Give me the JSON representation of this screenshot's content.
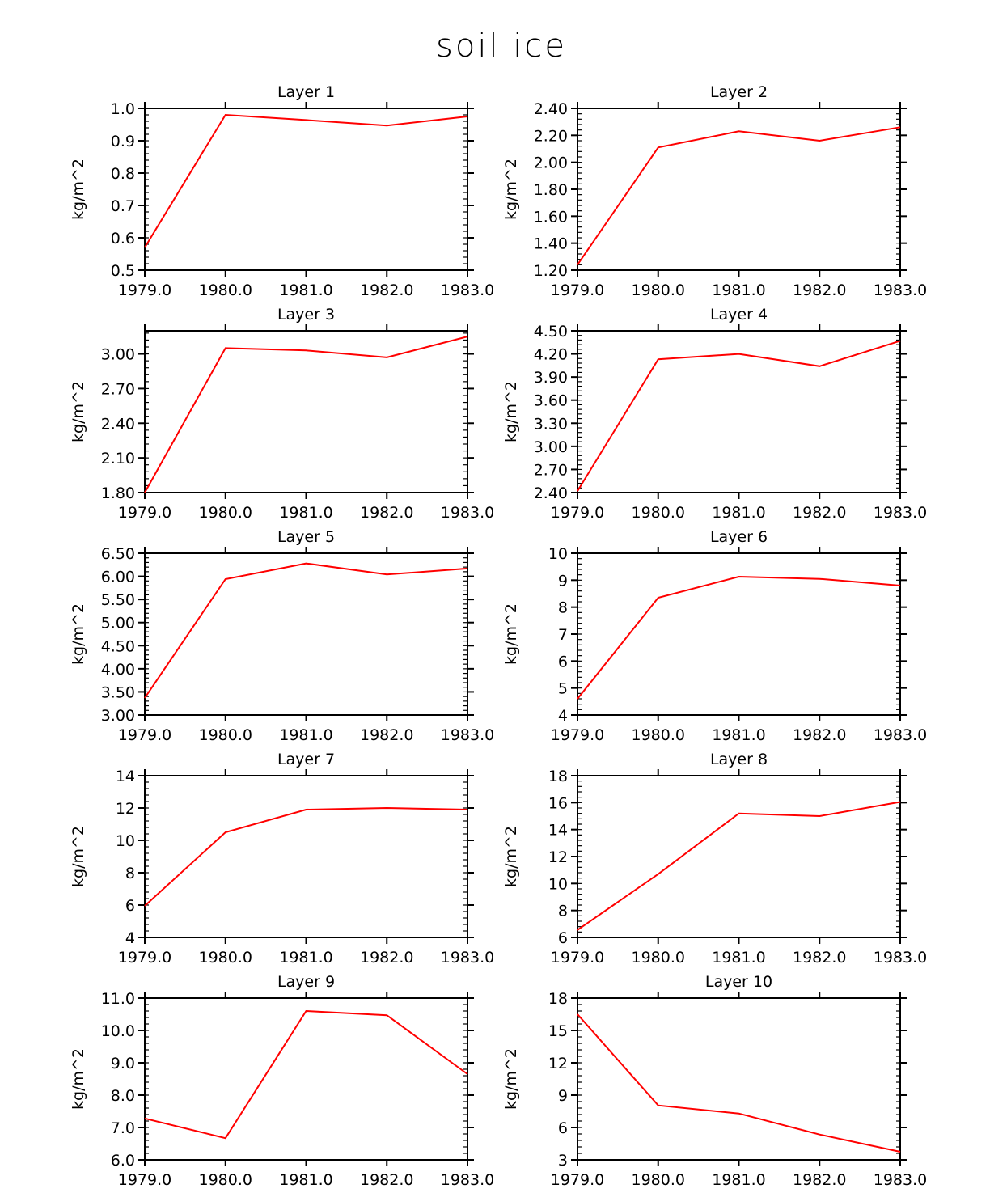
{
  "chart_data": {
    "title": "soil ice",
    "type": "line",
    "line_color": "#ff0000",
    "panels": [
      {
        "title": "Layer 1",
        "ylabel": "kg/m^2",
        "ylim": [
          0.5,
          1.0
        ],
        "yticks": [
          0.5,
          0.6,
          0.7,
          0.8,
          0.9,
          1.0
        ],
        "yfmt": 1,
        "x": [
          1979.0,
          1980.0,
          1981.0,
          1982.0,
          1983.0
        ],
        "values": [
          0.57,
          0.98,
          0.964,
          0.947,
          0.975
        ]
      },
      {
        "title": "Layer 2",
        "ylabel": "kg/m^2",
        "ylim": [
          1.2,
          2.4
        ],
        "yticks": [
          1.2,
          1.4,
          1.6,
          1.8,
          2.0,
          2.2,
          2.4
        ],
        "yfmt": 2,
        "x": [
          1979.0,
          1980.0,
          1981.0,
          1982.0,
          1983.0
        ],
        "values": [
          1.24,
          2.11,
          2.23,
          2.16,
          2.26
        ]
      },
      {
        "title": "Layer 3",
        "ylabel": "kg/m^2",
        "ylim": [
          1.8,
          3.2
        ],
        "yticks": [
          1.8,
          2.1,
          2.4,
          2.7,
          3.0
        ],
        "yfmt": 2,
        "x": [
          1979.0,
          1980.0,
          1981.0,
          1982.0,
          1983.0
        ],
        "values": [
          1.8,
          3.05,
          3.03,
          2.97,
          3.15
        ]
      },
      {
        "title": "Layer 4",
        "ylabel": "kg/m^2",
        "ylim": [
          2.4,
          4.5
        ],
        "yticks": [
          2.4,
          2.7,
          3.0,
          3.3,
          3.6,
          3.9,
          4.2,
          4.5
        ],
        "yfmt": 2,
        "x": [
          1979.0,
          1980.0,
          1981.0,
          1982.0,
          1983.0
        ],
        "values": [
          2.42,
          4.13,
          4.2,
          4.04,
          4.37
        ]
      },
      {
        "title": "Layer 5",
        "ylabel": "kg/m^2",
        "ylim": [
          3.0,
          6.5
        ],
        "yticks": [
          3.0,
          3.5,
          4.0,
          4.5,
          5.0,
          5.5,
          6.0,
          6.5
        ],
        "yfmt": 2,
        "x": [
          1979.0,
          1980.0,
          1981.0,
          1982.0,
          1983.0
        ],
        "values": [
          3.37,
          5.94,
          6.28,
          6.04,
          6.17
        ]
      },
      {
        "title": "Layer 6",
        "ylabel": "kg/m^2",
        "ylim": [
          4,
          10
        ],
        "yticks": [
          4,
          5,
          6,
          7,
          8,
          9,
          10
        ],
        "yfmt": 0,
        "x": [
          1979.0,
          1980.0,
          1981.0,
          1982.0,
          1983.0
        ],
        "values": [
          4.6,
          8.35,
          9.13,
          9.05,
          8.8
        ]
      },
      {
        "title": "Layer 7",
        "ylabel": "kg/m^2",
        "ylim": [
          4,
          14
        ],
        "yticks": [
          4,
          6,
          8,
          10,
          12,
          14
        ],
        "yfmt": 0,
        "x": [
          1979.0,
          1980.0,
          1981.0,
          1982.0,
          1983.0
        ],
        "values": [
          5.95,
          10.5,
          11.9,
          12.0,
          11.9
        ]
      },
      {
        "title": "Layer 8",
        "ylabel": "kg/m^2",
        "ylim": [
          6,
          18
        ],
        "yticks": [
          6,
          8,
          10,
          12,
          14,
          16,
          18
        ],
        "yfmt": 0,
        "x": [
          1979.0,
          1980.0,
          1981.0,
          1982.0,
          1983.0
        ],
        "values": [
          6.55,
          10.7,
          15.2,
          15.0,
          16.05
        ]
      },
      {
        "title": "Layer 9",
        "ylabel": "kg/m^2",
        "ylim": [
          6.0,
          11.0
        ],
        "yticks": [
          6.0,
          7.0,
          8.0,
          9.0,
          10.0,
          11.0
        ],
        "yfmt": 1,
        "x": [
          1979.0,
          1980.0,
          1981.0,
          1982.0,
          1983.0
        ],
        "values": [
          7.28,
          6.67,
          10.6,
          10.47,
          8.65
        ]
      },
      {
        "title": "Layer 10",
        "ylabel": "kg/m^2",
        "ylim": [
          3,
          18
        ],
        "yticks": [
          3,
          6,
          9,
          12,
          15,
          18
        ],
        "yfmt": 0,
        "x": [
          1979.0,
          1980.0,
          1981.0,
          1982.0,
          1983.0
        ],
        "values": [
          16.5,
          8.05,
          7.3,
          5.35,
          3.75
        ]
      }
    ],
    "xticks": [
      "1979.0",
      "1980.0",
      "1981.0",
      "1982.0",
      "1983.0"
    ],
    "xlim": [
      1979.0,
      1983.0
    ]
  }
}
